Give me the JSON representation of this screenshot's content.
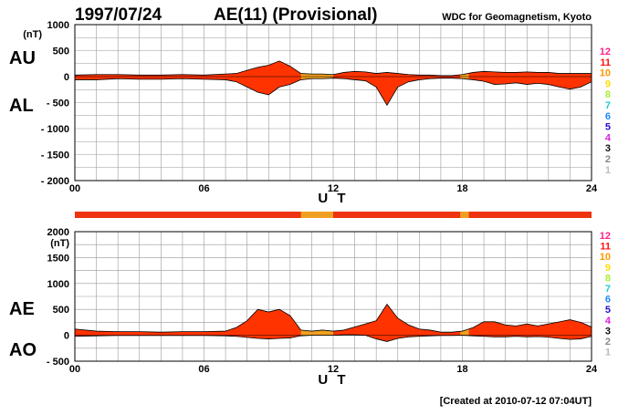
{
  "header": {
    "date": "1997/07/24",
    "title": "AE(11) (Provisional)",
    "source": "WDC for Geomagnetism, Kyoto"
  },
  "footer": {
    "created": "[Created at 2010-07-12 07:04UT]"
  },
  "colors": {
    "fill_main": "#ff3300",
    "fill_alt": "#f0a020",
    "grid": "#999999",
    "band_primary": "#ee3311",
    "band_secondary": "#f0a020"
  },
  "station_legend": [
    {
      "num": "12",
      "color": "#ff2288"
    },
    {
      "num": "11",
      "color": "#ff1111"
    },
    {
      "num": "10",
      "color": "#ff9900"
    },
    {
      "num": "9",
      "color": "#ffdd00"
    },
    {
      "num": "8",
      "color": "#aaee33"
    },
    {
      "num": "7",
      "color": "#22cccc"
    },
    {
      "num": "6",
      "color": "#2288ff"
    },
    {
      "num": "5",
      "color": "#2211cc"
    },
    {
      "num": "4",
      "color": "#dd22dd"
    },
    {
      "num": "3",
      "color": "#111111"
    },
    {
      "num": "2",
      "color": "#888888"
    },
    {
      "num": "1",
      "color": "#bbbbbb"
    }
  ],
  "chart_data": [
    {
      "type": "area",
      "panel": "AU/AL",
      "upper_label": "AU",
      "lower_label": "AL",
      "ylabel": "(nT)",
      "xlabel": "U T",
      "xlim": [
        0,
        24
      ],
      "ylim": [
        -2000,
        1000
      ],
      "xticks": [
        "00",
        "06",
        "12",
        "18",
        "24"
      ],
      "yticks": [
        "1000",
        "500",
        "0",
        "- 500",
        "- 1000",
        "- 1500",
        "- 2000"
      ],
      "grid": true,
      "x": [
        0,
        1,
        2,
        3,
        4,
        5,
        6,
        7,
        7.5,
        8,
        8.5,
        9,
        9.5,
        10,
        10.5,
        11,
        11.5,
        12,
        12.5,
        13,
        13.5,
        14,
        14.5,
        15,
        15.5,
        16,
        16.5,
        17,
        17.5,
        18,
        18.5,
        19,
        19.5,
        20,
        20.5,
        21,
        21.5,
        22,
        22.5,
        23,
        23.5,
        24
      ],
      "series": [
        {
          "name": "AU",
          "values": [
            30,
            40,
            40,
            30,
            30,
            40,
            30,
            50,
            60,
            120,
            180,
            220,
            300,
            200,
            60,
            50,
            50,
            40,
            80,
            100,
            90,
            60,
            80,
            60,
            40,
            30,
            30,
            20,
            20,
            40,
            80,
            100,
            90,
            80,
            80,
            90,
            80,
            80,
            60,
            60,
            60,
            60
          ]
        },
        {
          "name": "AL",
          "values": [
            -60,
            -60,
            -40,
            -50,
            -50,
            -40,
            -50,
            -60,
            -100,
            -200,
            -300,
            -350,
            -200,
            -150,
            -60,
            -40,
            -40,
            -30,
            -40,
            -60,
            -80,
            -200,
            -550,
            -200,
            -100,
            -60,
            -40,
            -30,
            -30,
            -40,
            -60,
            -90,
            -150,
            -140,
            -120,
            -150,
            -130,
            -150,
            -200,
            -240,
            -200,
            -100
          ]
        }
      ],
      "alt_color_ranges": [
        [
          10.5,
          12
        ],
        [
          17.9,
          18.3
        ]
      ]
    },
    {
      "type": "area",
      "panel": "AE/AO",
      "upper_label": "AE",
      "lower_label": "AO",
      "ylabel": "(nT)",
      "xlabel": "U T",
      "xlim": [
        0,
        24
      ],
      "ylim": [
        -500,
        2000
      ],
      "xticks": [
        "00",
        "06",
        "12",
        "18",
        "24"
      ],
      "yticks": [
        "2000",
        "1500",
        "1000",
        "500",
        "0",
        "- 500"
      ],
      "grid": true,
      "x": [
        0,
        1,
        2,
        3,
        4,
        5,
        6,
        7,
        7.5,
        8,
        8.5,
        9,
        9.5,
        10,
        10.5,
        11,
        11.5,
        12,
        12.5,
        13,
        13.5,
        14,
        14.5,
        15,
        15.5,
        16,
        16.5,
        17,
        17.5,
        18,
        18.5,
        19,
        19.5,
        20,
        20.5,
        21,
        21.5,
        22,
        22.5,
        23,
        23.5,
        24
      ],
      "series": [
        {
          "name": "AE",
          "values": [
            120,
            80,
            70,
            70,
            60,
            70,
            70,
            80,
            150,
            280,
            500,
            450,
            500,
            380,
            100,
            80,
            100,
            80,
            100,
            160,
            220,
            280,
            600,
            330,
            200,
            120,
            100,
            60,
            60,
            80,
            150,
            260,
            260,
            200,
            180,
            220,
            180,
            220,
            260,
            300,
            250,
            160
          ]
        },
        {
          "name": "AO",
          "values": [
            -20,
            -10,
            -5,
            -5,
            -5,
            -5,
            -5,
            -10,
            -20,
            -40,
            -60,
            -70,
            -60,
            -50,
            -10,
            0,
            0,
            0,
            10,
            10,
            0,
            -70,
            -120,
            -60,
            -30,
            -20,
            -10,
            -5,
            -5,
            0,
            -10,
            -20,
            -30,
            -30,
            -20,
            -30,
            -25,
            -35,
            -60,
            -80,
            -70,
            -20
          ]
        }
      ],
      "alt_color_ranges": [
        [
          10.5,
          12
        ],
        [
          17.9,
          18.3
        ]
      ]
    }
  ]
}
